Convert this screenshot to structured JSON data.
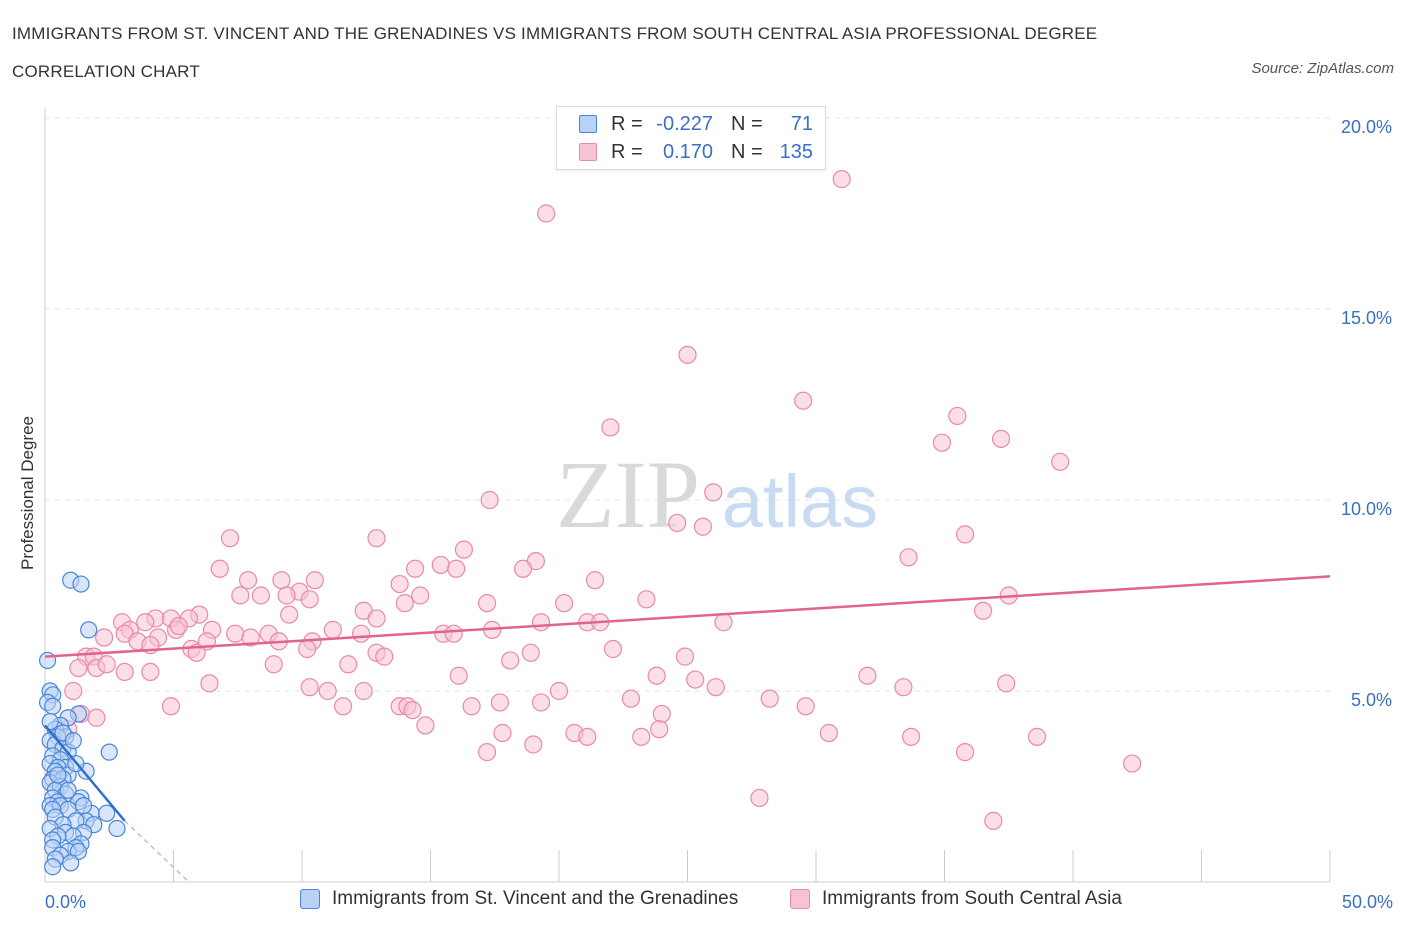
{
  "title_line1": "IMMIGRANTS FROM ST. VINCENT AND THE GRENADINES VS IMMIGRANTS FROM SOUTH CENTRAL ASIA PROFESSIONAL DEGREE",
  "title_line2": "CORRELATION CHART",
  "source": "Source: ZipAtlas.com",
  "watermark": {
    "zip": "ZIP",
    "atlas": "atlas"
  },
  "legend": {
    "r_label": "R =",
    "n_label": "N =",
    "series1": {
      "r": "-0.227",
      "n": "71"
    },
    "series2": {
      "r": "0.170",
      "n": "135"
    }
  },
  "colors": {
    "blue_fill": "#b9d1f5",
    "blue_stroke": "#4a86d8",
    "blue_line": "#2f6fc9",
    "pink_fill": "#f7c3d2",
    "pink_stroke": "#e88aa8",
    "pink_line": "#e0648f",
    "axis_text": "#3a6fc4",
    "grid": "#e3e3e3"
  },
  "chart_data": {
    "type": "scatter",
    "title": "IMMIGRANTS FROM ST. VINCENT AND THE GRENADINES VS IMMIGRANTS FROM SOUTH CENTRAL ASIA PROFESSIONAL DEGREE CORRELATION CHART",
    "xlabel": "",
    "ylabel": "Professional Degree",
    "xlim": [
      0,
      50
    ],
    "ylim": [
      0,
      20
    ],
    "x_tick_labels": [
      "0.0%",
      "50.0%"
    ],
    "y_ticks": [
      5,
      10,
      15,
      20
    ],
    "y_tick_labels": [
      "5.0%",
      "10.0%",
      "15.0%",
      "20.0%"
    ],
    "grid": true,
    "legend_position": "top-center",
    "series": [
      {
        "name": "Immigrants from St. Vincent and the Grenadines",
        "color": "#4a86d8",
        "trend": {
          "x": [
            0.0,
            3.1
          ],
          "y": [
            4.1,
            1.6
          ],
          "extended_x": 5.6,
          "extended_y": 0.0
        },
        "points": [
          [
            1.0,
            7.9
          ],
          [
            1.4,
            7.8
          ],
          [
            1.7,
            6.6
          ],
          [
            0.1,
            5.8
          ],
          [
            0.2,
            5.0
          ],
          [
            0.3,
            4.9
          ],
          [
            0.1,
            4.7
          ],
          [
            0.3,
            4.6
          ],
          [
            1.3,
            4.4
          ],
          [
            0.9,
            4.3
          ],
          [
            0.6,
            4.1
          ],
          [
            0.4,
            4.0
          ],
          [
            0.8,
            3.8
          ],
          [
            0.5,
            3.8
          ],
          [
            0.2,
            3.7
          ],
          [
            0.4,
            3.6
          ],
          [
            0.7,
            3.5
          ],
          [
            0.9,
            3.4
          ],
          [
            2.5,
            3.4
          ],
          [
            0.3,
            3.3
          ],
          [
            0.6,
            3.2
          ],
          [
            0.2,
            3.1
          ],
          [
            0.8,
            3.0
          ],
          [
            0.5,
            3.0
          ],
          [
            1.6,
            2.9
          ],
          [
            0.4,
            2.9
          ],
          [
            0.9,
            2.8
          ],
          [
            0.3,
            2.7
          ],
          [
            0.7,
            2.7
          ],
          [
            0.2,
            2.6
          ],
          [
            0.6,
            2.5
          ],
          [
            0.4,
            2.4
          ],
          [
            0.8,
            2.3
          ],
          [
            0.3,
            2.2
          ],
          [
            1.4,
            2.2
          ],
          [
            0.5,
            2.1
          ],
          [
            1.3,
            2.1
          ],
          [
            0.2,
            2.0
          ],
          [
            0.6,
            2.0
          ],
          [
            0.9,
            1.9
          ],
          [
            0.3,
            1.9
          ],
          [
            1.8,
            1.8
          ],
          [
            2.4,
            1.8
          ],
          [
            0.4,
            1.7
          ],
          [
            1.6,
            1.6
          ],
          [
            1.2,
            1.6
          ],
          [
            0.7,
            1.5
          ],
          [
            1.9,
            1.5
          ],
          [
            0.2,
            1.4
          ],
          [
            2.8,
            1.4
          ],
          [
            1.5,
            1.3
          ],
          [
            0.8,
            1.3
          ],
          [
            1.1,
            1.2
          ],
          [
            0.5,
            1.2
          ],
          [
            0.3,
            1.1
          ],
          [
            1.4,
            1.0
          ],
          [
            1.2,
            0.9
          ],
          [
            0.3,
            0.9
          ],
          [
            0.9,
            0.8
          ],
          [
            1.3,
            0.8
          ],
          [
            0.6,
            0.7
          ],
          [
            0.4,
            0.6
          ],
          [
            1.0,
            0.5
          ],
          [
            0.3,
            0.4
          ],
          [
            1.5,
            2.0
          ],
          [
            0.7,
            3.9
          ],
          [
            1.1,
            3.7
          ],
          [
            0.5,
            2.8
          ],
          [
            0.9,
            2.4
          ],
          [
            0.2,
            4.2
          ],
          [
            1.2,
            3.1
          ]
        ]
      },
      {
        "name": "Immigrants from South Central Asia",
        "color": "#e88aa8",
        "trend": {
          "x": [
            0.0,
            50.0
          ],
          "y": [
            5.9,
            8.0
          ]
        },
        "points": [
          [
            31.0,
            18.4
          ],
          [
            19.5,
            17.5
          ],
          [
            25.0,
            13.8
          ],
          [
            29.5,
            12.6
          ],
          [
            35.5,
            12.2
          ],
          [
            22.0,
            11.9
          ],
          [
            34.9,
            11.5
          ],
          [
            37.2,
            11.6
          ],
          [
            39.5,
            11.0
          ],
          [
            17.3,
            10.0
          ],
          [
            26.0,
            10.2
          ],
          [
            24.6,
            9.4
          ],
          [
            25.6,
            9.3
          ],
          [
            7.2,
            9.0
          ],
          [
            12.9,
            9.0
          ],
          [
            35.8,
            9.1
          ],
          [
            16.3,
            8.7
          ],
          [
            19.1,
            8.4
          ],
          [
            33.6,
            8.5
          ],
          [
            6.8,
            8.2
          ],
          [
            14.4,
            8.2
          ],
          [
            15.4,
            8.3
          ],
          [
            16.0,
            8.2
          ],
          [
            18.6,
            8.2
          ],
          [
            7.9,
            7.9
          ],
          [
            9.2,
            7.9
          ],
          [
            10.5,
            7.9
          ],
          [
            13.8,
            7.8
          ],
          [
            21.4,
            7.9
          ],
          [
            8.4,
            7.5
          ],
          [
            9.9,
            7.6
          ],
          [
            14.6,
            7.5
          ],
          [
            7.6,
            7.5
          ],
          [
            9.4,
            7.5
          ],
          [
            10.3,
            7.4
          ],
          [
            17.2,
            7.3
          ],
          [
            20.2,
            7.3
          ],
          [
            14.0,
            7.3
          ],
          [
            23.4,
            7.4
          ],
          [
            36.5,
            7.1
          ],
          [
            37.5,
            7.5
          ],
          [
            12.4,
            7.1
          ],
          [
            12.9,
            6.9
          ],
          [
            9.5,
            7.0
          ],
          [
            6.0,
            7.0
          ],
          [
            4.3,
            6.9
          ],
          [
            4.9,
            6.9
          ],
          [
            5.6,
            6.9
          ],
          [
            3.9,
            6.8
          ],
          [
            3.0,
            6.8
          ],
          [
            3.3,
            6.6
          ],
          [
            5.1,
            6.6
          ],
          [
            5.2,
            6.7
          ],
          [
            6.5,
            6.6
          ],
          [
            7.4,
            6.5
          ],
          [
            8.0,
            6.4
          ],
          [
            8.7,
            6.5
          ],
          [
            9.1,
            6.3
          ],
          [
            11.2,
            6.6
          ],
          [
            12.3,
            6.5
          ],
          [
            15.5,
            6.5
          ],
          [
            15.9,
            6.5
          ],
          [
            17.4,
            6.6
          ],
          [
            19.3,
            6.8
          ],
          [
            21.1,
            6.8
          ],
          [
            21.6,
            6.8
          ],
          [
            26.4,
            6.8
          ],
          [
            2.3,
            6.4
          ],
          [
            3.1,
            6.5
          ],
          [
            4.4,
            6.4
          ],
          [
            6.3,
            6.3
          ],
          [
            10.4,
            6.3
          ],
          [
            5.7,
            6.1
          ],
          [
            3.6,
            6.3
          ],
          [
            4.1,
            6.2
          ],
          [
            5.9,
            6.0
          ],
          [
            10.2,
            6.1
          ],
          [
            12.9,
            6.0
          ],
          [
            13.2,
            5.9
          ],
          [
            18.9,
            6.0
          ],
          [
            22.1,
            6.1
          ],
          [
            24.9,
            5.9
          ],
          [
            1.6,
            5.9
          ],
          [
            1.9,
            5.9
          ],
          [
            2.0,
            5.6
          ],
          [
            8.9,
            5.7
          ],
          [
            11.8,
            5.7
          ],
          [
            18.1,
            5.8
          ],
          [
            1.3,
            5.6
          ],
          [
            2.4,
            5.7
          ],
          [
            4.1,
            5.5
          ],
          [
            3.1,
            5.5
          ],
          [
            16.1,
            5.4
          ],
          [
            23.8,
            5.4
          ],
          [
            25.3,
            5.3
          ],
          [
            32.0,
            5.4
          ],
          [
            37.4,
            5.2
          ],
          [
            6.4,
            5.2
          ],
          [
            10.3,
            5.1
          ],
          [
            11.0,
            5.0
          ],
          [
            12.4,
            5.0
          ],
          [
            20.0,
            5.0
          ],
          [
            22.8,
            4.8
          ],
          [
            26.1,
            5.1
          ],
          [
            33.4,
            5.1
          ],
          [
            1.1,
            5.0
          ],
          [
            4.9,
            4.6
          ],
          [
            11.6,
            4.6
          ],
          [
            13.8,
            4.6
          ],
          [
            14.1,
            4.6
          ],
          [
            16.6,
            4.6
          ],
          [
            17.7,
            4.7
          ],
          [
            19.3,
            4.7
          ],
          [
            28.2,
            4.8
          ],
          [
            29.6,
            4.6
          ],
          [
            14.3,
            4.5
          ],
          [
            24.0,
            4.4
          ],
          [
            14.8,
            4.1
          ],
          [
            23.9,
            4.0
          ],
          [
            20.6,
            3.9
          ],
          [
            21.1,
            3.8
          ],
          [
            23.2,
            3.8
          ],
          [
            17.8,
            3.9
          ],
          [
            30.5,
            3.9
          ],
          [
            33.7,
            3.8
          ],
          [
            38.6,
            3.8
          ],
          [
            19.0,
            3.6
          ],
          [
            17.2,
            3.4
          ],
          [
            35.8,
            3.4
          ],
          [
            42.3,
            3.1
          ],
          [
            27.8,
            2.2
          ],
          [
            36.9,
            1.6
          ],
          [
            1.4,
            4.4
          ],
          [
            2.0,
            4.3
          ],
          [
            0.9,
            4.0
          ]
        ]
      }
    ]
  },
  "bottom_legend": {
    "series1": "Immigrants from St. Vincent and the Grenadines",
    "series2": "Immigrants from South Central Asia"
  }
}
